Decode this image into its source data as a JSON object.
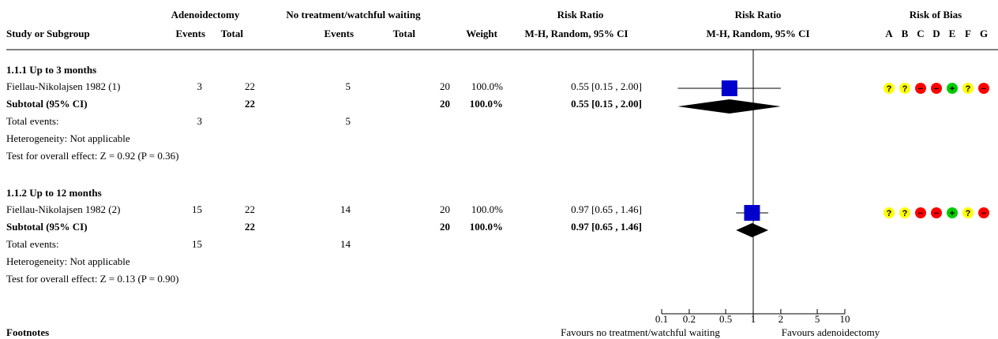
{
  "headers": {
    "study": "Study or Subgroup",
    "group1": "Adenoidectomy",
    "group2": "No treatment/watchful waiting",
    "events": "Events",
    "total": "Total",
    "weight": "Weight",
    "rr_title": "Risk Ratio",
    "rr_method": "M-H, Random, 95% CI",
    "rob_title": "Risk of Bias",
    "rob_letters": [
      "A",
      "B",
      "C",
      "D",
      "E",
      "F",
      "G"
    ]
  },
  "subgroups": [
    {
      "title": "1.1.1 Up to 3 months",
      "study": {
        "name": "Fiellau-Nikolajsen 1982 (1)",
        "e1": "3",
        "t1": "22",
        "e2": "5",
        "t2": "20",
        "weight": "100.0%",
        "ci": "0.55 [0.15 , 2.00]"
      },
      "subtotal": {
        "label": "Subtotal (95% CI)",
        "t1": "22",
        "t2": "20",
        "weight": "100.0%",
        "ci": "0.55 [0.15 , 2.00]"
      },
      "total_events": {
        "label": "Total events:",
        "e1": "3",
        "e2": "5"
      },
      "heterogeneity": "Heterogeneity: Not applicable",
      "overall": "Test for overall effect: Z = 0.92 (P = 0.36)",
      "rob": [
        "?",
        "?",
        "-",
        "-",
        "+",
        "?",
        "-"
      ]
    },
    {
      "title": "1.1.2 Up to 12 months",
      "study": {
        "name": "Fiellau-Nikolajsen 1982 (2)",
        "e1": "15",
        "t1": "22",
        "e2": "14",
        "t2": "20",
        "weight": "100.0%",
        "ci": "0.97 [0.65 , 1.46]"
      },
      "subtotal": {
        "label": "Subtotal (95% CI)",
        "t1": "22",
        "t2": "20",
        "weight": "100.0%",
        "ci": "0.97 [0.65 , 1.46]"
      },
      "total_events": {
        "label": "Total events:",
        "e1": "15",
        "e2": "14"
      },
      "heterogeneity": "Heterogeneity: Not applicable",
      "overall": "Test for overall effect: Z = 0.13 (P = 0.90)",
      "rob": [
        "?",
        "?",
        "-",
        "-",
        "+",
        "?",
        "-"
      ]
    }
  ],
  "footnotes": "Footnotes",
  "chart_data": {
    "type": "forest",
    "scale": "log",
    "xlim": [
      0.1,
      10
    ],
    "ticks": [
      0.1,
      0.2,
      0.5,
      1,
      2,
      5,
      10
    ],
    "tick_labels": [
      "0.1",
      "0.2",
      "0.5",
      "1",
      "2",
      "5",
      "10"
    ],
    "left_label": "Favours no treatment/watchful waiting",
    "right_label": "Favours adenoidectomy",
    "studies": [
      {
        "label": "Fiellau-Nikolajsen 1982 (1)",
        "rr": 0.55,
        "lo": 0.15,
        "hi": 2.0
      },
      {
        "label": "Fiellau-Nikolajsen 1982 (2)",
        "rr": 0.97,
        "lo": 0.65,
        "hi": 1.46
      }
    ],
    "subtotals": [
      {
        "label": "Subtotal (95% CI)",
        "rr": 0.55,
        "lo": 0.15,
        "hi": 2.0
      },
      {
        "label": "Subtotal (95% CI)",
        "rr": 0.97,
        "lo": 0.65,
        "hi": 1.46
      }
    ]
  },
  "colors": {
    "square": "#0000cc",
    "diamond": "#000000",
    "unclear": "#ffff00",
    "high": "#ff0000",
    "low": "#00cc00"
  }
}
